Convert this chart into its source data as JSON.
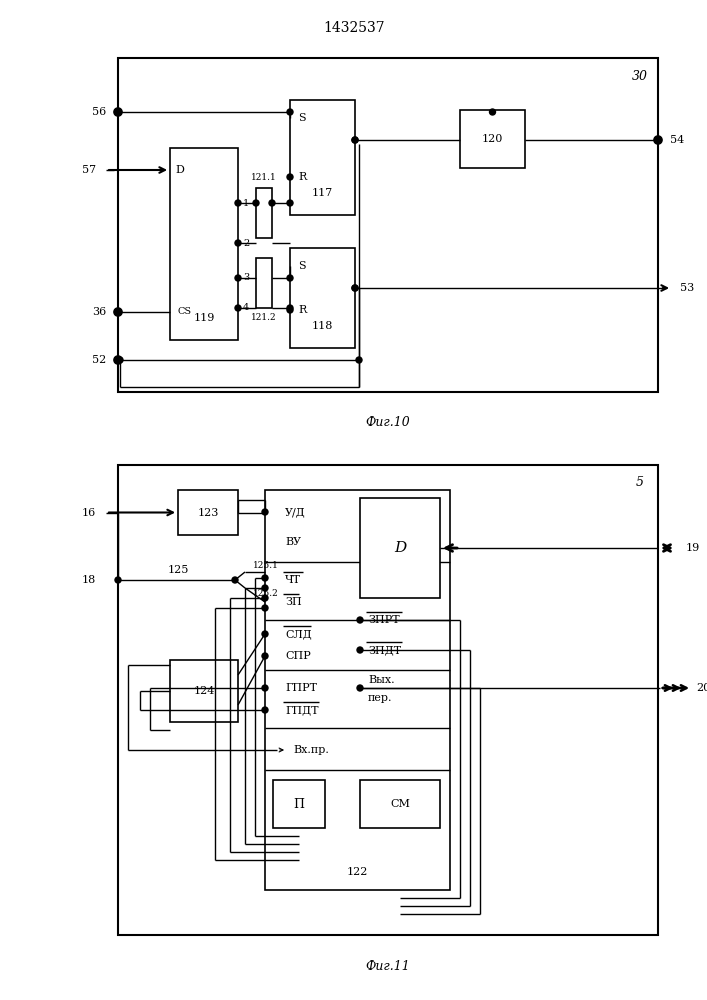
{
  "title": "1432537",
  "fig10_label": "Фиг.10",
  "fig11_label": "Фиг.11",
  "bg_color": "#ffffff",
  "lc": "#000000"
}
